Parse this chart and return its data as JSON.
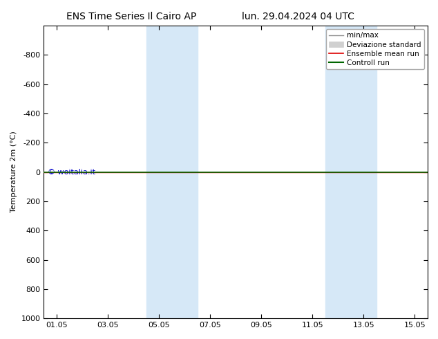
{
  "title_left": "ENS Time Series Il Cairo AP",
  "title_right": "lun. 29.04.2024 04 UTC",
  "ylabel": "Temperature 2m (°C)",
  "ylim": [
    -1000,
    1000
  ],
  "yticks": [
    -800,
    -600,
    -400,
    -200,
    0,
    200,
    400,
    600,
    800,
    1000
  ],
  "xtick_labels": [
    "01.05",
    "03.05",
    "05.05",
    "07.05",
    "09.05",
    "11.05",
    "13.05",
    "15.05"
  ],
  "xtick_positions": [
    0,
    2,
    4,
    6,
    8,
    10,
    12,
    14
  ],
  "shaded_bands": [
    {
      "x_start": 3.5,
      "x_end": 5.5
    },
    {
      "x_start": 10.5,
      "x_end": 12.5
    }
  ],
  "band_color": "#d6e8f7",
  "ensemble_mean_y": 0,
  "control_run_y": 0,
  "ensemble_mean_color": "#dd0000",
  "control_run_color": "#006600",
  "minmax_color": "#909090",
  "devstd_color": "#d0d0d0",
  "watermark_text": "© woitalia.it",
  "watermark_color": "#0000cc",
  "legend_entries": [
    "min/max",
    "Deviazione standard",
    "Ensemble mean run",
    "Controll run"
  ],
  "background_color": "#ffffff",
  "title_fontsize": 10,
  "axis_fontsize": 8,
  "tick_fontsize": 8,
  "legend_fontsize": 7.5
}
